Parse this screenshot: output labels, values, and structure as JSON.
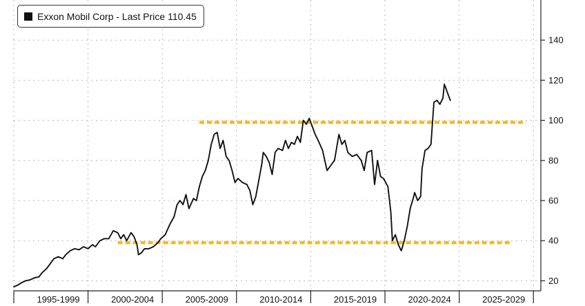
{
  "chart_data": {
    "type": "line",
    "legend_text": "Exxon Mobil Corp - Last Price 110.45",
    "legend_placement": "top-left",
    "y_axis_side": "right",
    "ylim": [
      15,
      160
    ],
    "yticks": [
      20,
      40,
      60,
      80,
      100,
      120,
      140
    ],
    "xlim": [
      1994.5,
      2030
    ],
    "x_tick_labels": [
      {
        "label": "1995-1999",
        "center": 1997.5
      },
      {
        "label": "2000-2004",
        "center": 2002.5
      },
      {
        "label": "2005-2009",
        "center": 2007.5
      },
      {
        "label": "2010-2014",
        "center": 2012.5
      },
      {
        "label": "2015-2019",
        "center": 2017.5
      },
      {
        "label": "2020-2024",
        "center": 2022.5
      },
      {
        "label": "2025-2029",
        "center": 2027.5
      }
    ],
    "x_dividers": [
      1994.5,
      1999.5,
      2004.5,
      2009.5,
      2014.5,
      2019.5,
      2024.5,
      2029.5
    ],
    "grid": true,
    "line_color": "#111111",
    "reference_lines": [
      {
        "y": 99,
        "x_start": 2007.0,
        "x_end": 2029.0,
        "color": "#f4b82c",
        "style": "dashed"
      },
      {
        "y": 39,
        "x_start": 2001.5,
        "x_end": 2028.0,
        "color": "#f4b82c",
        "style": "dashed"
      }
    ],
    "series": [
      {
        "points": [
          [
            1994.5,
            17
          ],
          [
            1994.8,
            18
          ],
          [
            1995.0,
            19
          ],
          [
            1995.3,
            20
          ],
          [
            1995.6,
            20.5
          ],
          [
            1995.9,
            21.5
          ],
          [
            1996.2,
            22
          ],
          [
            1996.4,
            24
          ],
          [
            1996.7,
            26
          ],
          [
            1996.9,
            28
          ],
          [
            1997.2,
            31
          ],
          [
            1997.5,
            32
          ],
          [
            1997.8,
            31
          ],
          [
            1998.0,
            33
          ],
          [
            1998.3,
            35
          ],
          [
            1998.6,
            36
          ],
          [
            1998.9,
            35.5
          ],
          [
            1999.2,
            37
          ],
          [
            1999.5,
            36
          ],
          [
            1999.8,
            38
          ],
          [
            2000.0,
            37
          ],
          [
            2000.3,
            40
          ],
          [
            2000.6,
            41
          ],
          [
            2000.9,
            41
          ],
          [
            2001.2,
            45
          ],
          [
            2001.5,
            44
          ],
          [
            2001.7,
            41
          ],
          [
            2001.9,
            43
          ],
          [
            2002.1,
            40
          ],
          [
            2002.4,
            44
          ],
          [
            2002.6,
            42
          ],
          [
            2002.8,
            38
          ],
          [
            2002.9,
            33
          ],
          [
            2003.1,
            34
          ],
          [
            2003.3,
            36
          ],
          [
            2003.6,
            36
          ],
          [
            2003.9,
            37
          ],
          [
            2004.2,
            39
          ],
          [
            2004.4,
            41
          ],
          [
            2004.7,
            43
          ],
          [
            2005.0,
            48
          ],
          [
            2005.3,
            52
          ],
          [
            2005.5,
            58
          ],
          [
            2005.7,
            60
          ],
          [
            2005.9,
            58
          ],
          [
            2006.1,
            63
          ],
          [
            2006.3,
            56
          ],
          [
            2006.6,
            61
          ],
          [
            2006.8,
            60
          ],
          [
            2007.0,
            67
          ],
          [
            2007.2,
            72
          ],
          [
            2007.4,
            75
          ],
          [
            2007.6,
            80
          ],
          [
            2007.8,
            88
          ],
          [
            2008.0,
            93
          ],
          [
            2008.2,
            94
          ],
          [
            2008.4,
            86
          ],
          [
            2008.6,
            90
          ],
          [
            2008.8,
            82
          ],
          [
            2009.0,
            80
          ],
          [
            2009.2,
            75
          ],
          [
            2009.4,
            69
          ],
          [
            2009.6,
            71
          ],
          [
            2009.9,
            69
          ],
          [
            2010.2,
            68
          ],
          [
            2010.4,
            65
          ],
          [
            2010.6,
            58
          ],
          [
            2010.8,
            62
          ],
          [
            2011.0,
            70
          ],
          [
            2011.2,
            78
          ],
          [
            2011.3,
            84
          ],
          [
            2011.5,
            82
          ],
          [
            2011.7,
            79
          ],
          [
            2011.9,
            73
          ],
          [
            2012.1,
            84
          ],
          [
            2012.3,
            86
          ],
          [
            2012.6,
            85
          ],
          [
            2012.8,
            90
          ],
          [
            2013.0,
            86
          ],
          [
            2013.2,
            89
          ],
          [
            2013.4,
            88
          ],
          [
            2013.6,
            92
          ],
          [
            2013.8,
            89
          ],
          [
            2014.0,
            100
          ],
          [
            2014.2,
            98
          ],
          [
            2014.4,
            101
          ],
          [
            2014.6,
            97
          ],
          [
            2014.8,
            93
          ],
          [
            2015.0,
            90
          ],
          [
            2015.3,
            85
          ],
          [
            2015.6,
            75
          ],
          [
            2015.9,
            78
          ],
          [
            2016.1,
            80
          ],
          [
            2016.4,
            93
          ],
          [
            2016.6,
            88
          ],
          [
            2016.8,
            90
          ],
          [
            2017.0,
            84
          ],
          [
            2017.3,
            82
          ],
          [
            2017.6,
            83
          ],
          [
            2017.9,
            80
          ],
          [
            2018.1,
            75
          ],
          [
            2018.3,
            84
          ],
          [
            2018.6,
            85
          ],
          [
            2018.8,
            68
          ],
          [
            2019.0,
            80
          ],
          [
            2019.2,
            72
          ],
          [
            2019.4,
            71
          ],
          [
            2019.7,
            67
          ],
          [
            2019.9,
            54
          ],
          [
            2020.0,
            40
          ],
          [
            2020.2,
            43
          ],
          [
            2020.4,
            38
          ],
          [
            2020.6,
            35
          ],
          [
            2020.8,
            40
          ],
          [
            2021.0,
            47
          ],
          [
            2021.2,
            56
          ],
          [
            2021.4,
            61
          ],
          [
            2021.5,
            64
          ],
          [
            2021.7,
            60
          ],
          [
            2021.9,
            62
          ],
          [
            2022.0,
            76
          ],
          [
            2022.2,
            85
          ],
          [
            2022.4,
            86
          ],
          [
            2022.6,
            88
          ],
          [
            2022.8,
            109
          ],
          [
            2023.0,
            110
          ],
          [
            2023.2,
            108
          ],
          [
            2023.4,
            111
          ],
          [
            2023.5,
            118
          ],
          [
            2023.7,
            114
          ],
          [
            2023.9,
            110
          ]
        ]
      }
    ]
  }
}
